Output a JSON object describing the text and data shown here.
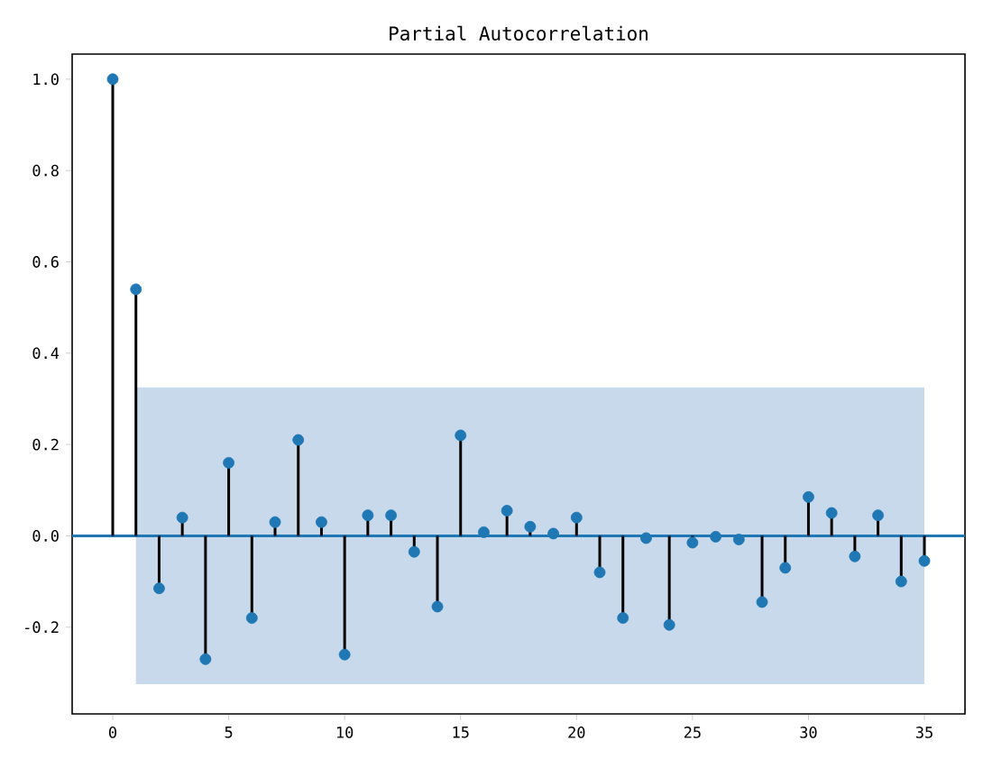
{
  "chart_data": {
    "type": "lollipop",
    "title": "Partial Autocorrelation",
    "x": [
      0,
      1,
      2,
      3,
      4,
      5,
      6,
      7,
      8,
      9,
      10,
      11,
      12,
      13,
      14,
      15,
      16,
      17,
      18,
      19,
      20,
      21,
      22,
      23,
      24,
      25,
      26,
      27,
      28,
      29,
      30,
      31,
      32,
      33,
      34,
      35
    ],
    "values": [
      1.0,
      0.54,
      -0.115,
      0.04,
      -0.27,
      0.16,
      -0.18,
      0.03,
      0.21,
      0.03,
      -0.26,
      0.045,
      0.045,
      -0.035,
      -0.155,
      0.22,
      0.008,
      0.055,
      0.02,
      0.005,
      0.04,
      -0.08,
      -0.18,
      -0.005,
      -0.195,
      -0.015,
      -0.002,
      -0.008,
      -0.145,
      -0.07,
      0.085,
      0.05,
      -0.045,
      0.045,
      -0.1,
      -0.055
    ],
    "color": "#1f77b4",
    "marker": "circle",
    "xlim": [
      -1.75,
      36.75
    ],
    "ylim": [
      -0.39,
      1.055
    ],
    "xticks": [
      0,
      5,
      10,
      15,
      20,
      25,
      30,
      35
    ],
    "yticks": [
      {
        "value": -0.2,
        "label": "-0.2"
      },
      {
        "value": 0,
        "label": "0.0"
      },
      {
        "value": 0.2,
        "label": "0.2"
      },
      {
        "value": 0.4,
        "label": "0.4"
      },
      {
        "value": 0.6,
        "label": "0.6"
      },
      {
        "value": 0.8,
        "label": "0.8"
      },
      {
        "value": 1.0,
        "label": "1.0"
      }
    ],
    "ref_lines": [
      {
        "axis": "y",
        "value": 0,
        "color": "#1f77b4"
      }
    ],
    "bands": [
      {
        "axis": "y",
        "from": -0.325,
        "to": 0.325,
        "color": "#c7d9ea"
      }
    ],
    "grid": false
  }
}
